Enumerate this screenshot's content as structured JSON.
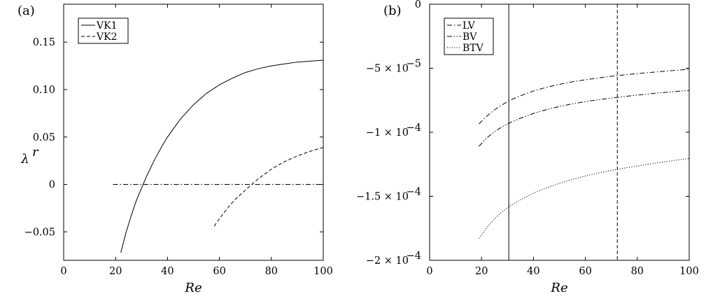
{
  "chart_data": [
    {
      "type": "line",
      "panel_label": "(a)",
      "xlabel": "Re",
      "ylabel": "λ",
      "ylabel_sup": "r",
      "xlim": [
        0,
        100
      ],
      "ylim": [
        -0.08,
        0.19
      ],
      "xticks": [
        0,
        20,
        40,
        60,
        80,
        100
      ],
      "xtick_labels": [
        "0",
        "20",
        "40",
        "60",
        "80",
        "100"
      ],
      "yticks": [
        -0.05,
        0,
        0.05,
        0.1,
        0.15
      ],
      "ytick_labels": [
        "−0.05",
        "0",
        "0.05",
        "0.10",
        "0.15"
      ],
      "grid": false,
      "legend_position": "top-left",
      "series": [
        {
          "name": "VK1",
          "style": "solid",
          "x": [
            22,
            24,
            26,
            28,
            30,
            32,
            35,
            38,
            40,
            45,
            50,
            55,
            60,
            65,
            70,
            75,
            80,
            85,
            90,
            95,
            100
          ],
          "y": [
            -0.072,
            -0.051,
            -0.033,
            -0.017,
            -0.004,
            0.009,
            0.026,
            0.041,
            0.05,
            0.069,
            0.084,
            0.096,
            0.105,
            0.112,
            0.118,
            0.122,
            0.125,
            0.127,
            0.129,
            0.13,
            0.131
          ]
        },
        {
          "name": "VK2",
          "style": "dashed",
          "x": [
            58,
            60,
            62,
            64,
            66,
            68,
            70,
            72,
            75,
            78,
            80,
            85,
            90,
            95,
            100
          ],
          "y": [
            -0.044,
            -0.036,
            -0.029,
            -0.022,
            -0.016,
            -0.011,
            -0.006,
            -0.001,
            0.006,
            0.012,
            0.016,
            0.024,
            0.03,
            0.035,
            0.039
          ]
        },
        {
          "style": "dashdot",
          "x": [
            19,
            100
          ],
          "y": [
            0,
            0
          ]
        }
      ]
    },
    {
      "type": "line",
      "panel_label": "(b)",
      "xlabel": "Re",
      "xlim": [
        0,
        100
      ],
      "ylim": [
        -0.0002,
        0
      ],
      "xticks": [
        0,
        20,
        40,
        60,
        80,
        100
      ],
      "xtick_labels": [
        "0",
        "20",
        "40",
        "60",
        "80",
        "100"
      ],
      "yticks": [
        -0.0002,
        -0.00015,
        -0.0001,
        -5e-05,
        0
      ],
      "ytick_labels": [
        "−2 × 10",
        "−1.5 × 10",
        "−1 × 10",
        "−5 × 10",
        "0"
      ],
      "ytick_exponents": [
        "−4",
        "−4",
        "−4",
        "−5",
        ""
      ],
      "grid": false,
      "legend_position": "top-left",
      "vlines": [
        {
          "x": 30.5,
          "style": "solid"
        },
        {
          "x": 72.3,
          "style": "dashed"
        }
      ],
      "series": [
        {
          "name": "LV",
          "style": "dashdot",
          "x": [
            19,
            22,
            25,
            28,
            31,
            35,
            40,
            45,
            50,
            55,
            60,
            65,
            70,
            75,
            80,
            85,
            90,
            95,
            100
          ],
          "y": [
            -9.35e-05,
            -8.75e-05,
            -8.25e-05,
            -7.85e-05,
            -7.5e-05,
            -7.15e-05,
            -6.78e-05,
            -6.49e-05,
            -6.26e-05,
            -6.06e-05,
            -5.9e-05,
            -5.76e-05,
            -5.63e-05,
            -5.52e-05,
            -5.42e-05,
            -5.33e-05,
            -5.24e-05,
            -5.16e-05,
            -5.08e-05
          ]
        },
        {
          "name": "BV",
          "style": "dashdotdot",
          "x": [
            19,
            22,
            25,
            28,
            31,
            35,
            40,
            45,
            50,
            55,
            60,
            65,
            70,
            75,
            80,
            85,
            90,
            95,
            100
          ],
          "y": [
            -0.000111,
            -0.0001045,
            -9.95e-05,
            -9.57e-05,
            -9.25e-05,
            -8.9e-05,
            -8.53e-05,
            -8.23e-05,
            -7.99e-05,
            -7.78e-05,
            -7.61e-05,
            -7.46e-05,
            -7.33e-05,
            -7.21e-05,
            -7.1e-05,
            -6.99e-05,
            -6.9e-05,
            -6.81e-05,
            -6.74e-05
          ]
        },
        {
          "name": "BTV",
          "style": "dotted",
          "x": [
            19,
            22,
            25,
            28,
            31,
            35,
            40,
            45,
            50,
            55,
            60,
            65,
            70,
            75,
            80,
            85,
            90,
            95,
            100
          ],
          "y": [
            -0.000183,
            -0.0001745,
            -0.0001675,
            -0.0001619,
            -0.0001575,
            -0.0001527,
            -0.0001476,
            -0.0001434,
            -0.0001399,
            -0.0001368,
            -0.0001342,
            -0.0001319,
            -0.0001298,
            -0.000128,
            -0.0001263,
            -0.0001247,
            -0.0001232,
            -0.0001218,
            -0.0001205
          ]
        }
      ]
    }
  ]
}
